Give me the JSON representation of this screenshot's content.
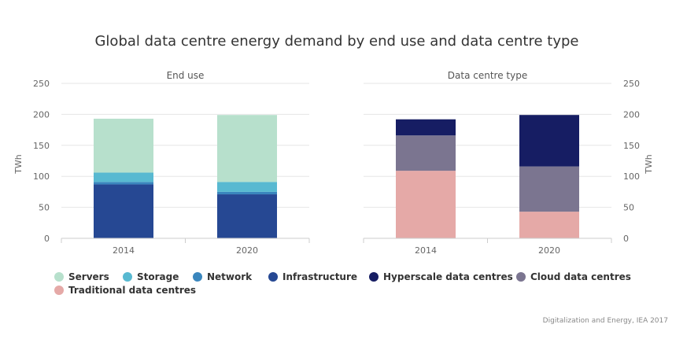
{
  "title": "Global data centre energy demand by end use and data centre type",
  "source": "Digitalization and Energy, IEA 2017",
  "chart_data": [
    {
      "type": "bar",
      "stacked": true,
      "title": "End use",
      "ylabel": "TWh",
      "ylim": [
        0,
        250
      ],
      "yticks": [
        0,
        50,
        100,
        150,
        200,
        250
      ],
      "categories": [
        "2014",
        "2020"
      ],
      "series": [
        {
          "name": "Infrastructure",
          "color": "#264893",
          "values": [
            87,
            71
          ]
        },
        {
          "name": "Network",
          "color": "#3a86bd",
          "values": [
            4,
            4
          ]
        },
        {
          "name": "Storage",
          "color": "#58b9d1",
          "values": [
            15,
            16
          ]
        },
        {
          "name": "Servers",
          "color": "#b7e0cc",
          "values": [
            87,
            108
          ]
        }
      ]
    },
    {
      "type": "bar",
      "stacked": true,
      "title": "Data centre type",
      "ylabel": "TWh",
      "ylim": [
        0,
        250
      ],
      "yticks": [
        0,
        50,
        100,
        150,
        200,
        250
      ],
      "categories": [
        "2014",
        "2020"
      ],
      "series": [
        {
          "name": "Traditional data centres",
          "color": "#e5a9a7",
          "values": [
            109,
            43
          ]
        },
        {
          "name": "Cloud data centres",
          "color": "#7b7590",
          "values": [
            57,
            73
          ]
        },
        {
          "name": "Hyperscale data centres",
          "color": "#161d63",
          "values": [
            26,
            83
          ]
        }
      ]
    }
  ],
  "legend": [
    {
      "label": "Servers",
      "color": "#b7e0cc"
    },
    {
      "label": "Storage",
      "color": "#58b9d1"
    },
    {
      "label": "Network",
      "color": "#3a86bd"
    },
    {
      "label": "Infrastructure",
      "color": "#264893"
    },
    {
      "label": "Hyperscale data centres",
      "color": "#161d63"
    },
    {
      "label": "Cloud data centres",
      "color": "#7b7590"
    },
    {
      "label": "Traditional data centres",
      "color": "#e5a9a7"
    }
  ]
}
